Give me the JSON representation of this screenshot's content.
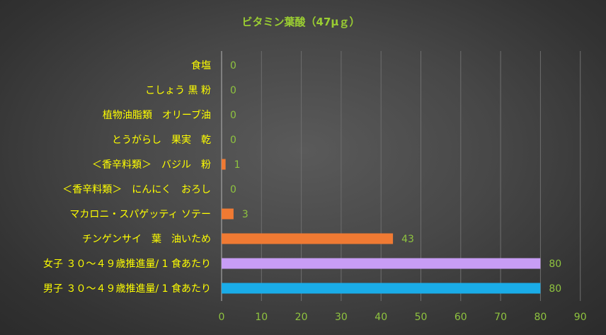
{
  "chart_data": {
    "type": "bar",
    "orientation": "horizontal",
    "title": "ビタミン葉酸（47μｇ）",
    "xlabel": "",
    "ylabel": "",
    "xlim": [
      0,
      90
    ],
    "x_ticks": [
      "0",
      "10",
      "20",
      "30",
      "40",
      "50",
      "60",
      "70",
      "80",
      "90"
    ],
    "grid": true,
    "categories": [
      "食塩",
      "こしょう 黒 粉",
      "植物油脂類　オリーブ油",
      "とうがらし　果実　乾",
      "＜香辛料類＞　バジル　粉",
      "＜香辛料類＞　にんにく　おろし",
      "マカロニ・スパゲッティ ソテー",
      "チンゲンサイ　葉　油いため",
      "女子 ３０～４９歳推進量/ 1 食あたり",
      "男子 ３０～４９歳推進量/ 1 食あたり"
    ],
    "values": [
      0,
      0,
      0,
      0,
      1,
      0,
      3,
      43,
      80,
      80
    ],
    "value_labels": [
      "0",
      "0",
      "0",
      "0",
      "1",
      "0",
      "3",
      "43",
      "80",
      "80"
    ],
    "bar_colors": [
      "#f07a33",
      "#f07a33",
      "#f07a33",
      "#f07a33",
      "#f07a33",
      "#f07a33",
      "#f07a33",
      "#f07a33",
      "#c89df5",
      "#1aace8"
    ]
  },
  "colors": {
    "title": "#9acd32",
    "category_text": "#ffff00",
    "value_text": "#8fc43f",
    "tick_text": "#8fc43f",
    "grid": "#6e6e6e",
    "axis": "#b5b5b5"
  }
}
